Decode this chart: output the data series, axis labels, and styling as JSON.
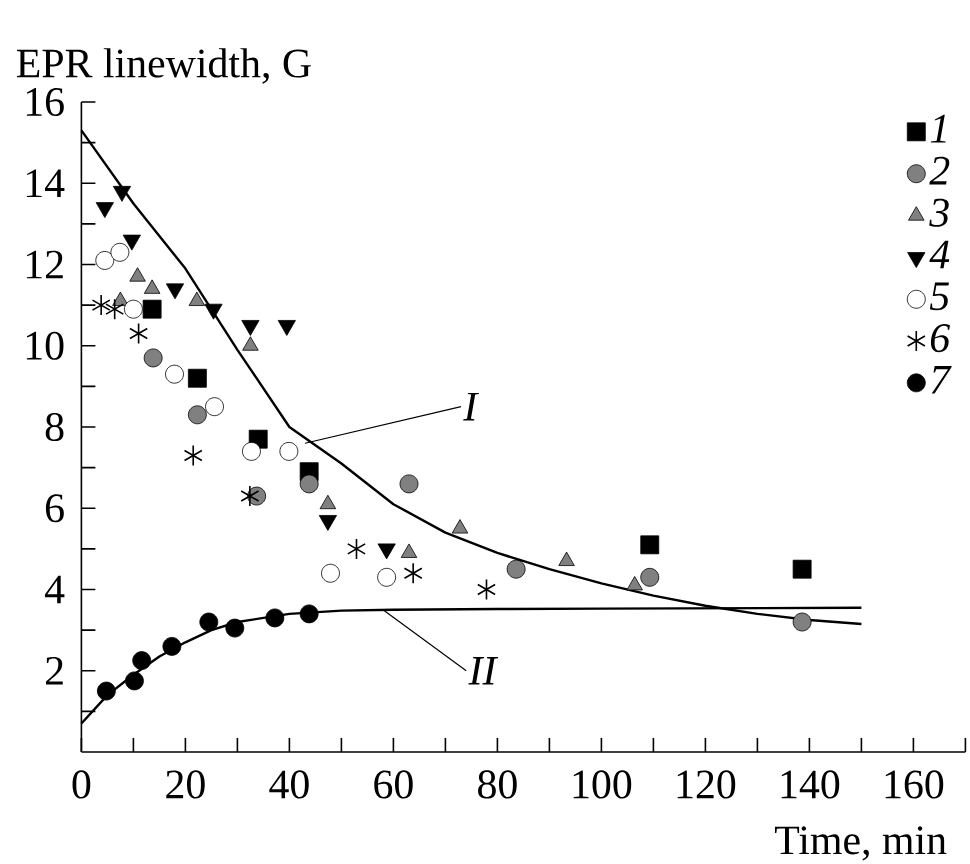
{
  "chart_data": {
    "type": "scatter",
    "xlabel": "Time, min",
    "ylabel": "EPR linewidth, G",
    "xlim": [
      0,
      170
    ],
    "ylim": [
      0,
      16
    ],
    "xticks": [
      0,
      {
        "value": 10,
        "label": null
      },
      20,
      {
        "value": 30,
        "label": null
      },
      40,
      {
        "value": 50,
        "label": null
      },
      60,
      {
        "value": 70,
        "label": null
      },
      80,
      {
        "value": 90,
        "label": null
      },
      100,
      {
        "value": 110,
        "label": null
      },
      120,
      {
        "value": 130,
        "label": null
      },
      140,
      {
        "value": 150,
        "label": null
      },
      160,
      {
        "value": 170,
        "label": null
      }
    ],
    "yticks": [
      {
        "value": 1,
        "label": null
      },
      2,
      {
        "value": 3,
        "label": null
      },
      4,
      {
        "value": 5,
        "label": null
      },
      6,
      {
        "value": 7,
        "label": null
      },
      8,
      {
        "value": 9,
        "label": null
      },
      10,
      {
        "value": 11,
        "label": null
      },
      12,
      {
        "value": 13,
        "label": null
      },
      14,
      {
        "value": 15,
        "label": null
      },
      16
    ],
    "legend": "top right",
    "series": [
      {
        "name": "1",
        "marker": "square",
        "color": "#000000",
        "x": [
          13.6,
          22.3,
          34,
          43.8,
          109.3,
          138.6
        ],
        "values": [
          10.9,
          9.2,
          7.7,
          6.9,
          5.1,
          4.5
        ]
      },
      {
        "name": "2",
        "marker": "circle",
        "color": "#808080",
        "x": [
          13.8,
          22.3,
          33.7,
          43.8,
          63,
          83.6,
          109.3,
          138.6
        ],
        "values": [
          9.7,
          8.3,
          6.3,
          6.6,
          6.6,
          4.5,
          4.3,
          3.2
        ]
      },
      {
        "name": "3",
        "marker": "triangle",
        "color": "#808080",
        "x": [
          7.5,
          10.8,
          13.6,
          22.2,
          32.5,
          47.4,
          63,
          72.8,
          93.3,
          106.4
        ],
        "values": [
          11.1,
          11.7,
          11.4,
          11.1,
          10,
          6.1,
          4.9,
          5.5,
          4.7,
          4.1
        ]
      },
      {
        "name": "4",
        "marker": "triangle-down",
        "color": "#000000",
        "x": [
          4.5,
          7.8,
          9.7,
          18,
          25.4,
          32.5,
          39.5,
          47.4,
          58.7
        ],
        "values": [
          13.4,
          13.8,
          12.6,
          11.4,
          10.9,
          10.5,
          10.5,
          5.7,
          5
        ]
      },
      {
        "name": "5",
        "marker": "circle",
        "color": "#ffffff",
        "x": [
          4.5,
          7.4,
          10,
          17.9,
          25.6,
          32.7,
          39.9,
          47.9,
          58.7
        ],
        "values": [
          12.1,
          12.3,
          10.9,
          9.3,
          8.5,
          7.4,
          7.4,
          4.4,
          4.3
        ]
      },
      {
        "name": "6",
        "marker": "cross",
        "color": "#000000",
        "x": [
          3.8,
          6.4,
          11,
          21.5,
          32.4,
          52.9,
          63.8,
          77.9
        ],
        "values": [
          11,
          10.9,
          10.3,
          7.3,
          6.3,
          5,
          4.4,
          4
        ]
      },
      {
        "name": "7",
        "marker": "circle",
        "color": "#000000",
        "x": [
          4.8,
          10.2,
          11.6,
          17.4,
          24.5,
          29.5,
          37.2,
          43.8
        ],
        "values": [
          1.5,
          1.75,
          2.25,
          2.6,
          3.2,
          3.05,
          3.3,
          3.4
        ]
      },
      {
        "type": "line",
        "marker": "none",
        "color": "#000000",
        "x": [
          0,
          10,
          20,
          30,
          40,
          50,
          60,
          70,
          80,
          90,
          100,
          110,
          120,
          130,
          140,
          150
        ],
        "values": [
          15.3,
          13.5,
          11.9,
          9.9,
          8,
          7.1,
          6.1,
          5.4,
          4.9,
          4.5,
          4.15,
          3.85,
          3.6,
          3.4,
          3.25,
          3.15
        ]
      },
      {
        "type": "line",
        "marker": "none",
        "color": "#000000",
        "x": [
          0,
          5,
          10,
          15,
          20,
          25,
          30,
          35,
          40,
          50,
          60,
          80,
          100,
          150
        ],
        "values": [
          0.7,
          1.4,
          1.9,
          2.35,
          2.7,
          3,
          3.2,
          3.3,
          3.4,
          3.48,
          3.5,
          3.52,
          3.53,
          3.55
        ]
      }
    ],
    "annotations": [
      {
        "text": "I",
        "x": 43,
        "y": 7.6
      },
      {
        "text": "II",
        "x": 58,
        "y": 3.5
      }
    ]
  }
}
